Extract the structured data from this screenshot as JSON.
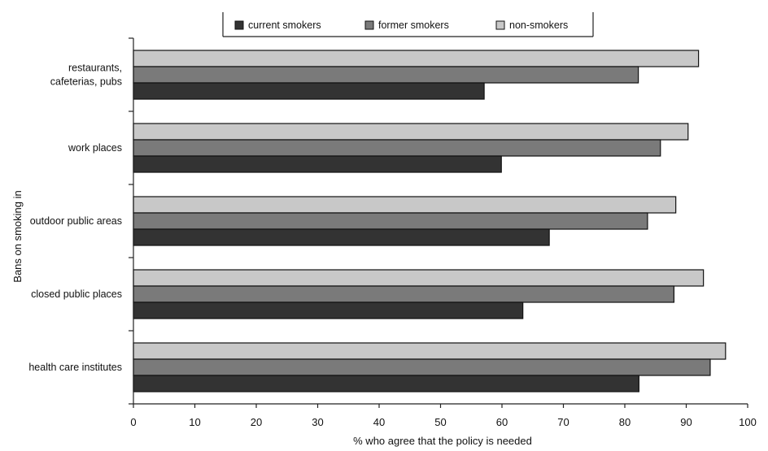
{
  "chart_data": {
    "type": "bar",
    "orientation": "horizontal",
    "categories": [
      [
        "restaurants,",
        "cafeterias, pubs"
      ],
      [
        "work places"
      ],
      [
        "outdoor public areas"
      ],
      [
        "closed public places"
      ],
      [
        "health care institutes"
      ]
    ],
    "series": [
      {
        "name": "non-smokers",
        "color": "#c8c8c8",
        "values": [
          92,
          90.3,
          88.3,
          92.8,
          96.4
        ]
      },
      {
        "name": "former smokers",
        "color": "#7a7a7a",
        "values": [
          82.2,
          85.8,
          83.7,
          88,
          93.9
        ]
      },
      {
        "name": "current smokers",
        "color": "#333333",
        "values": [
          57.1,
          59.9,
          67.7,
          63.4,
          82.3
        ]
      }
    ],
    "legend_order": [
      "current smokers",
      "former smokers",
      "non-smokers"
    ],
    "xlabel": "% who agree that the policy is needed",
    "ylabel": "Bans on smoking in",
    "xlim": [
      0,
      100
    ],
    "xticks": [
      0,
      10,
      20,
      30,
      40,
      50,
      60,
      70,
      80,
      90,
      100
    ],
    "grid": false,
    "legend_position": "top"
  }
}
